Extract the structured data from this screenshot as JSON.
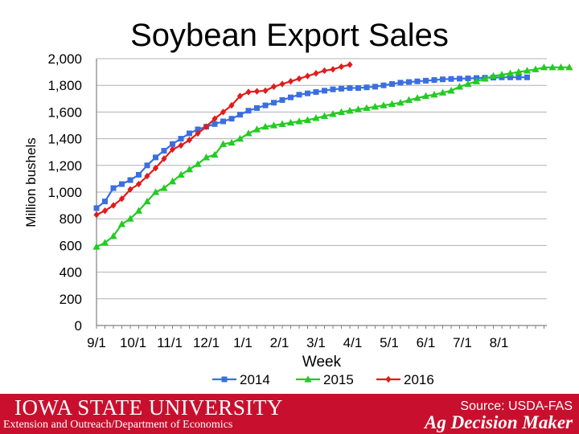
{
  "footer": {
    "university": "IOWA STATE UNIVERSITY",
    "department": "Extension and Outreach/Department of Economics",
    "source": "Source: USDA-FAS",
    "brand": "Ag Decision Maker",
    "background_color": "#c8102e"
  },
  "chart_data": {
    "type": "line",
    "title": "Soybean Export Sales",
    "xlabel": "Week",
    "ylabel": "Million bushels",
    "ylim": [
      0,
      2000
    ],
    "yticks": [
      "0",
      "200",
      "400",
      "600",
      "800",
      "1,000",
      "1,200",
      "1,400",
      "1,600",
      "1,800",
      "2,000"
    ],
    "xticks": [
      "9/1",
      "10/1",
      "11/1",
      "12/1",
      "1/1",
      "2/1",
      "3/1",
      "4/1",
      "5/1",
      "6/1",
      "7/1",
      "8/1"
    ],
    "x_unit": "week index (0 = 9/1)",
    "grid": true,
    "legend_position": "bottom",
    "series": [
      {
        "name": "2014",
        "color": "#3a6fe0",
        "marker": "square",
        "values": [
          880,
          930,
          1030,
          1060,
          1090,
          1130,
          1200,
          1260,
          1310,
          1360,
          1400,
          1440,
          1470,
          1490,
          1510,
          1530,
          1550,
          1580,
          1610,
          1630,
          1650,
          1670,
          1690,
          1710,
          1730,
          1740,
          1750,
          1760,
          1770,
          1775,
          1780,
          1780,
          1785,
          1790,
          1800,
          1810,
          1820,
          1825,
          1830,
          1835,
          1840,
          1845,
          1848,
          1850,
          1852,
          1855,
          1857,
          1858,
          1860,
          1860,
          1860,
          1860
        ]
      },
      {
        "name": "2015",
        "color": "#22cc22",
        "marker": "triangle",
        "values": [
          590,
          620,
          670,
          760,
          800,
          860,
          930,
          1000,
          1030,
          1080,
          1130,
          1170,
          1210,
          1260,
          1280,
          1360,
          1370,
          1400,
          1440,
          1470,
          1490,
          1500,
          1510,
          1520,
          1530,
          1540,
          1555,
          1570,
          1585,
          1600,
          1610,
          1620,
          1630,
          1640,
          1650,
          1660,
          1670,
          1690,
          1705,
          1720,
          1730,
          1745,
          1760,
          1790,
          1810,
          1830,
          1850,
          1870,
          1880,
          1890,
          1900,
          1910,
          1920,
          1935,
          1935,
          1935,
          1935
        ]
      },
      {
        "name": "2016",
        "color": "#e01c1c",
        "marker": "diamond",
        "values": [
          830,
          860,
          900,
          950,
          1020,
          1060,
          1120,
          1180,
          1250,
          1320,
          1350,
          1390,
          1440,
          1490,
          1550,
          1600,
          1650,
          1720,
          1750,
          1755,
          1760,
          1790,
          1810,
          1830,
          1850,
          1870,
          1890,
          1910,
          1920,
          1940,
          1955
        ]
      }
    ]
  }
}
